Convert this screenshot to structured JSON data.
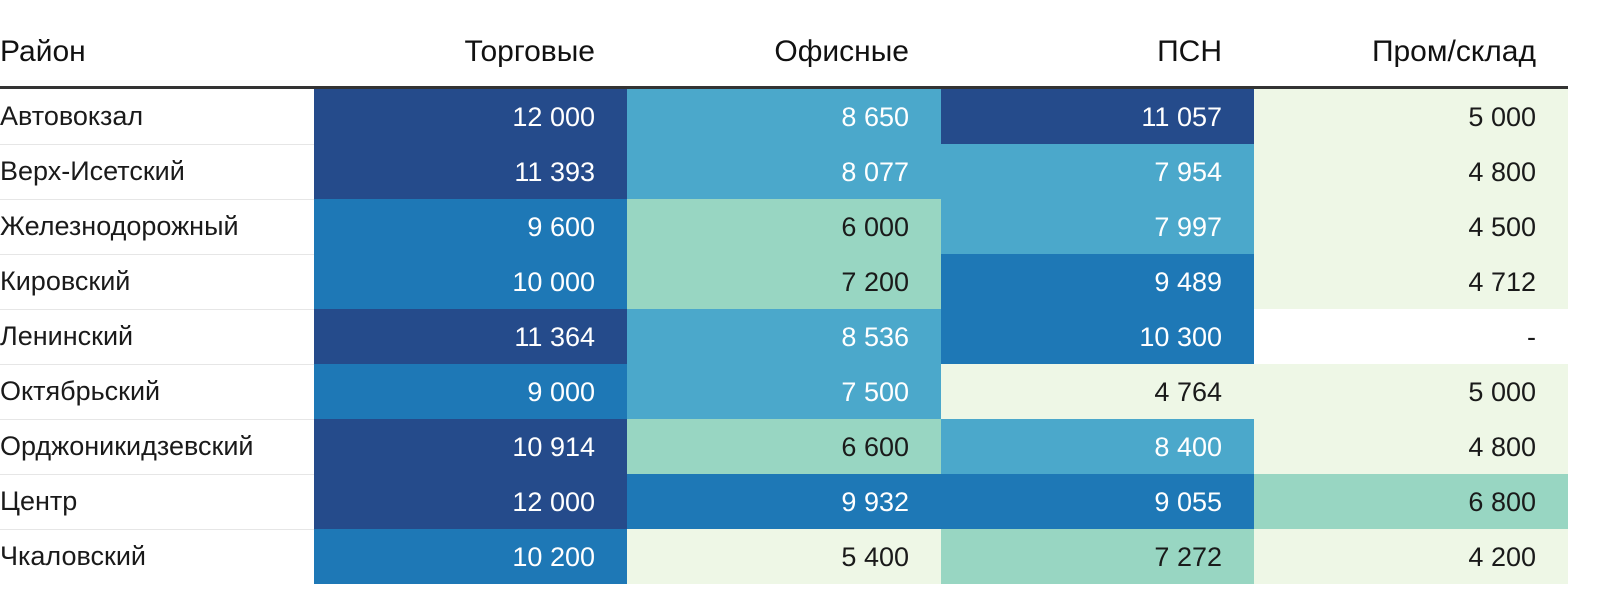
{
  "colors": {
    "level1": "#ffffff",
    "level2": "#eef7e6",
    "level3": "#98d6c2",
    "level4": "#4ba8cb",
    "level5": "#1e78b6",
    "level6": "#254b8b",
    "dark_text": "#1a1a1a",
    "light_text": "#ffffff"
  },
  "chart_data": {
    "type": "table",
    "columns": [
      "Район",
      "Торговые",
      "Офисные",
      "ПСН",
      "Пром/склад"
    ],
    "rows": [
      {
        "district": "Автовокзал",
        "cells": [
          {
            "text": "12 000",
            "value": 12000,
            "level": 6
          },
          {
            "text": "8 650",
            "value": 8650,
            "level": 4
          },
          {
            "text": "11 057",
            "value": 11057,
            "level": 6
          },
          {
            "text": "5 000",
            "value": 5000,
            "level": 2
          }
        ]
      },
      {
        "district": "Верх-Исетский",
        "cells": [
          {
            "text": "11 393",
            "value": 11393,
            "level": 6
          },
          {
            "text": "8 077",
            "value": 8077,
            "level": 4
          },
          {
            "text": "7 954",
            "value": 7954,
            "level": 4
          },
          {
            "text": "4 800",
            "value": 4800,
            "level": 2
          }
        ]
      },
      {
        "district": "Железнодорожный",
        "cells": [
          {
            "text": "9 600",
            "value": 9600,
            "level": 5
          },
          {
            "text": "6 000",
            "value": 6000,
            "level": 3
          },
          {
            "text": "7 997",
            "value": 7997,
            "level": 4
          },
          {
            "text": "4 500",
            "value": 4500,
            "level": 2
          }
        ]
      },
      {
        "district": "Кировский",
        "cells": [
          {
            "text": "10 000",
            "value": 10000,
            "level": 5
          },
          {
            "text": "7 200",
            "value": 7200,
            "level": 3
          },
          {
            "text": "9 489",
            "value": 9489,
            "level": 5
          },
          {
            "text": "4 712",
            "value": 4712,
            "level": 2
          }
        ]
      },
      {
        "district": "Ленинский",
        "cells": [
          {
            "text": "11 364",
            "value": 11364,
            "level": 6
          },
          {
            "text": "8 536",
            "value": 8536,
            "level": 4
          },
          {
            "text": "10 300",
            "value": 10300,
            "level": 5
          },
          {
            "text": "-",
            "value": null,
            "level": 1
          }
        ]
      },
      {
        "district": "Октябрьский",
        "cells": [
          {
            "text": "9 000",
            "value": 9000,
            "level": 5
          },
          {
            "text": "7 500",
            "value": 7500,
            "level": 4
          },
          {
            "text": "4 764",
            "value": 4764,
            "level": 2
          },
          {
            "text": "5 000",
            "value": 5000,
            "level": 2
          }
        ]
      },
      {
        "district": "Орджоникидзевский",
        "cells": [
          {
            "text": "10 914",
            "value": 10914,
            "level": 6
          },
          {
            "text": "6 600",
            "value": 6600,
            "level": 3
          },
          {
            "text": "8 400",
            "value": 8400,
            "level": 4
          },
          {
            "text": "4 800",
            "value": 4800,
            "level": 2
          }
        ]
      },
      {
        "district": "Центр",
        "cells": [
          {
            "text": "12 000",
            "value": 12000,
            "level": 6
          },
          {
            "text": "9 932",
            "value": 9932,
            "level": 5
          },
          {
            "text": "9 055",
            "value": 9055,
            "level": 5
          },
          {
            "text": "6 800",
            "value": 6800,
            "level": 3
          }
        ]
      },
      {
        "district": "Чкаловский",
        "cells": [
          {
            "text": "10 200",
            "value": 10200,
            "level": 5
          },
          {
            "text": "5 400",
            "value": 5400,
            "level": 2
          },
          {
            "text": "7 272",
            "value": 7272,
            "level": 3
          },
          {
            "text": "4 200",
            "value": 4200,
            "level": 2
          }
        ]
      }
    ]
  }
}
